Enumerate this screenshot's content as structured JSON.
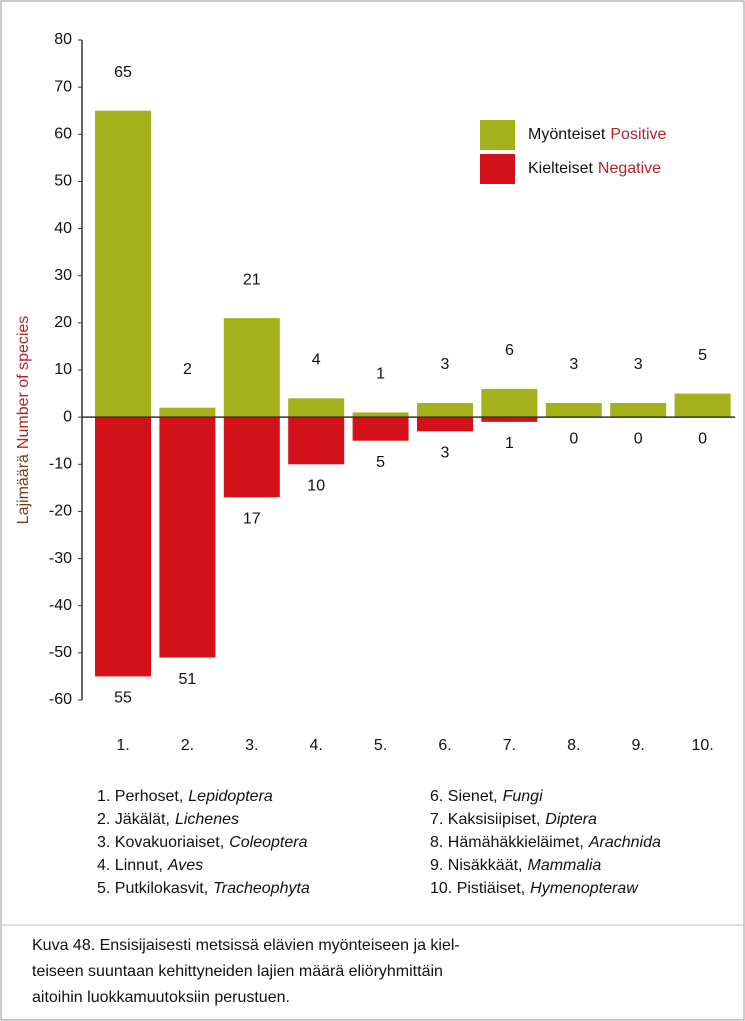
{
  "chart_data": {
    "type": "bar",
    "ylabel": "Lajimäärä",
    "ylabel_en": "Number of species",
    "categories": [
      "1.",
      "2.",
      "3.",
      "4.",
      "5.",
      "6.",
      "7.",
      "8.",
      "9.",
      "10."
    ],
    "series": [
      {
        "name": "Myönteiset",
        "name_en": "Positive",
        "color": "#a4b11b",
        "values": [
          65,
          2,
          21,
          4,
          1,
          3,
          6,
          3,
          3,
          5
        ]
      },
      {
        "name": "Kielteiset",
        "name_en": "Negative",
        "color": "#d3111b",
        "values": [
          -55,
          -51,
          -17,
          -10,
          -5,
          -3,
          -1,
          0,
          0,
          0
        ],
        "value_labels": [
          "55",
          "51",
          "17",
          "10",
          "5",
          "3",
          "1",
          "0",
          "0",
          "0"
        ]
      }
    ],
    "ylim": [
      -60,
      80
    ],
    "yticks": [
      80,
      70,
      60,
      50,
      40,
      30,
      20,
      10,
      0,
      -10,
      -20,
      -30,
      -40,
      -50,
      -60
    ],
    "groups": [
      {
        "label": "1. Perhoset,",
        "latin": "Lepidoptera"
      },
      {
        "label": "2. Jäkälät,",
        "latin": "Lichenes"
      },
      {
        "label": "3. Kovakuoriaiset,",
        "latin": "Coleoptera"
      },
      {
        "label": "4. Linnut,",
        "latin": "Aves"
      },
      {
        "label": "5. Putkilokasvit,",
        "latin": "Tracheophyta"
      },
      {
        "label": "6. Sienet,",
        "latin": "Fungi"
      },
      {
        "label": "7. Kaksisiipiset,",
        "latin": "Diptera"
      },
      {
        "label": "8. Hämähäkkieläimet,",
        "latin": "Arachnida"
      },
      {
        "label": "9. Nisäkkäät,",
        "latin": "Mammalia"
      },
      {
        "label": "10. Pistiäiset,",
        "latin": "Hymenopteraw"
      }
    ],
    "caption": [
      "Kuva 48. Ensisijaisesti metsissä elävien myönteiseen ja kiel-",
      "teiseen suuntaan kehittyneiden lajien määrä eliöryhmittäin",
      "aitoihin luokkamuutoksiin perustuen."
    ]
  }
}
